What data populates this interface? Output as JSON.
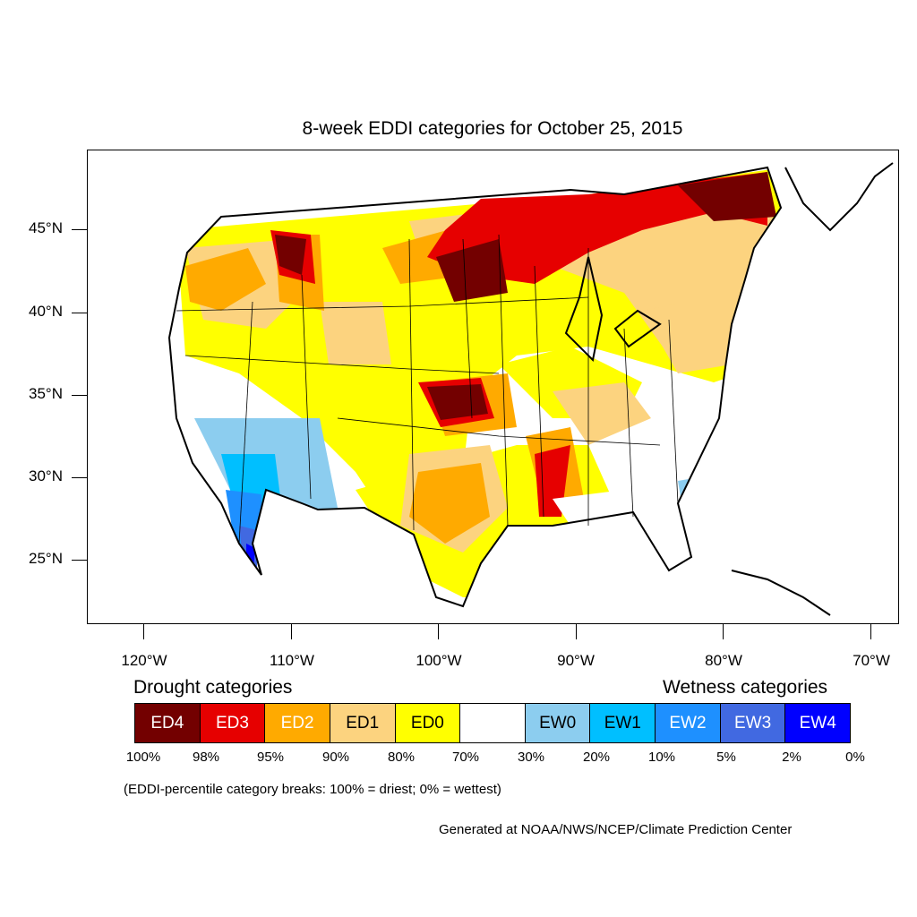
{
  "title": "8-week EDDI categories for October 25, 2015",
  "map": {
    "lat_labels": [
      "45°N",
      "40°N",
      "35°N",
      "30°N",
      "25°N"
    ],
    "lon_labels": [
      "120°W",
      "110°W",
      "100°W",
      "90°W",
      "80°W",
      "70°W"
    ]
  },
  "legend": {
    "drought_title": "Drought categories",
    "wetness_title": "Wetness categories",
    "categories": [
      {
        "label": "ED4",
        "color": "#730000",
        "text_color": "#ffffff"
      },
      {
        "label": "ED3",
        "color": "#e60000",
        "text_color": "#ffffff"
      },
      {
        "label": "ED2",
        "color": "#ffaa00",
        "text_color": "#ffffff"
      },
      {
        "label": "ED1",
        "color": "#fcd37f",
        "text_color": "#000000"
      },
      {
        "label": "ED0",
        "color": "#ffff00",
        "text_color": "#000000"
      },
      {
        "label": "",
        "color": "#ffffff",
        "text_color": "#000000"
      },
      {
        "label": "EW0",
        "color": "#8ccdef",
        "text_color": "#000000"
      },
      {
        "label": "EW1",
        "color": "#00bfff",
        "text_color": "#000000"
      },
      {
        "label": "EW2",
        "color": "#1e90ff",
        "text_color": "#ffffff"
      },
      {
        "label": "EW3",
        "color": "#4169e1",
        "text_color": "#ffffff"
      },
      {
        "label": "EW4",
        "color": "#0000ff",
        "text_color": "#ffffff"
      }
    ],
    "percentiles": [
      "100%",
      "98%",
      "95%",
      "90%",
      "80%",
      "70%",
      "30%",
      "20%",
      "10%",
      "5%",
      "2%",
      "0%"
    ]
  },
  "note": "(EDDI-percentile category breaks: 100% = driest; 0% = wettest)",
  "credit": "Generated at NOAA/NWS/NCEP/Climate Prediction Center"
}
